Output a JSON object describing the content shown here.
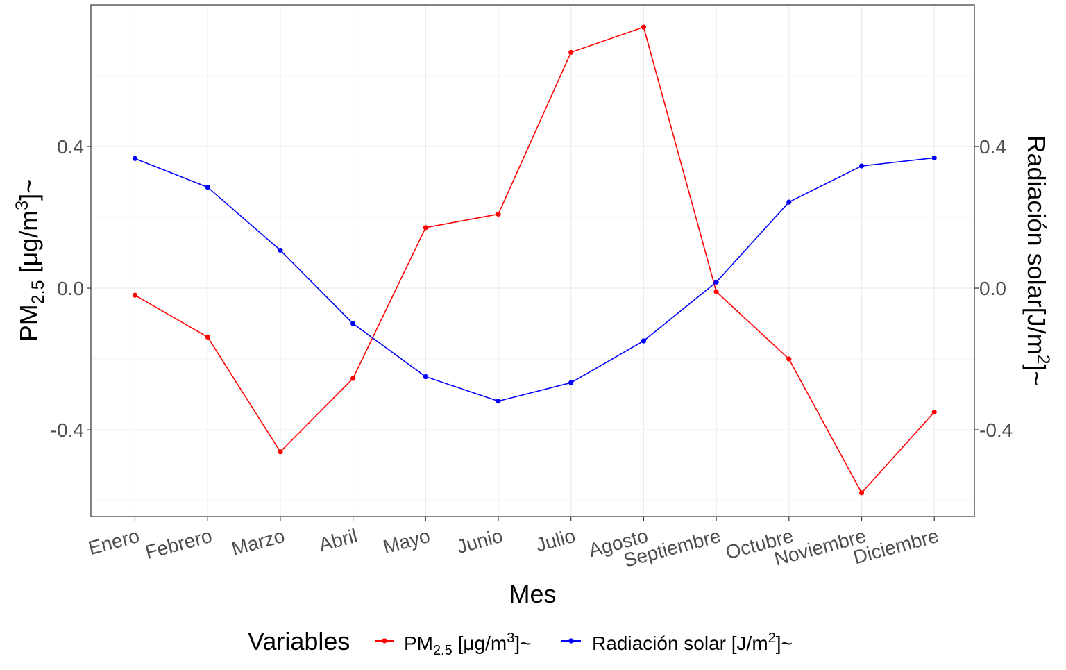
{
  "chart_data": {
    "type": "line",
    "categories": [
      "Enero",
      "Febrero",
      "Marzo",
      "Abril",
      "Mayo",
      "Junio",
      "Julio",
      "Agosto",
      "Septiembre",
      "Octubre",
      "Noviembre",
      "Diciembre"
    ],
    "series": [
      {
        "name": "PM2.5 [μg/m3]~",
        "name_parts": {
          "base": "PM",
          "sub": "2.5",
          "unit_pre": " [μg/m",
          "sup": "3",
          "unit_post": "]~"
        },
        "color": "#ff0000",
        "values": [
          -0.02,
          -0.138,
          -0.462,
          -0.255,
          0.171,
          0.209,
          0.666,
          0.737,
          -0.01,
          -0.2,
          -0.578,
          -0.35
        ]
      },
      {
        "name": "Radiación solar [J/m2]~",
        "name_parts": {
          "base": "Radiación solar [J/m",
          "sup": "2",
          "post": "]~"
        },
        "color": "#0000ff",
        "values": [
          0.366,
          0.285,
          0.107,
          -0.1,
          -0.25,
          -0.319,
          -0.267,
          -0.149,
          0.017,
          0.243,
          0.345,
          0.368
        ]
      }
    ],
    "xlabel": "Mes",
    "ylabel_left": {
      "base": "PM",
      "sub": "2.5",
      "pre_sup": " [μg/m",
      "sup": "3",
      "post": "]~"
    },
    "ylabel_right": {
      "base": "Radiación solar[J/m",
      "sup": "2",
      "post": "]~"
    },
    "ylim": [
      -0.645,
      0.8
    ],
    "yticks": [
      -0.4,
      0.0,
      0.4
    ],
    "ytick_labels": [
      "-0.4",
      "0.0",
      "0.4"
    ],
    "grid": true,
    "legend": {
      "title": "Variables",
      "placement": "bottom"
    }
  }
}
